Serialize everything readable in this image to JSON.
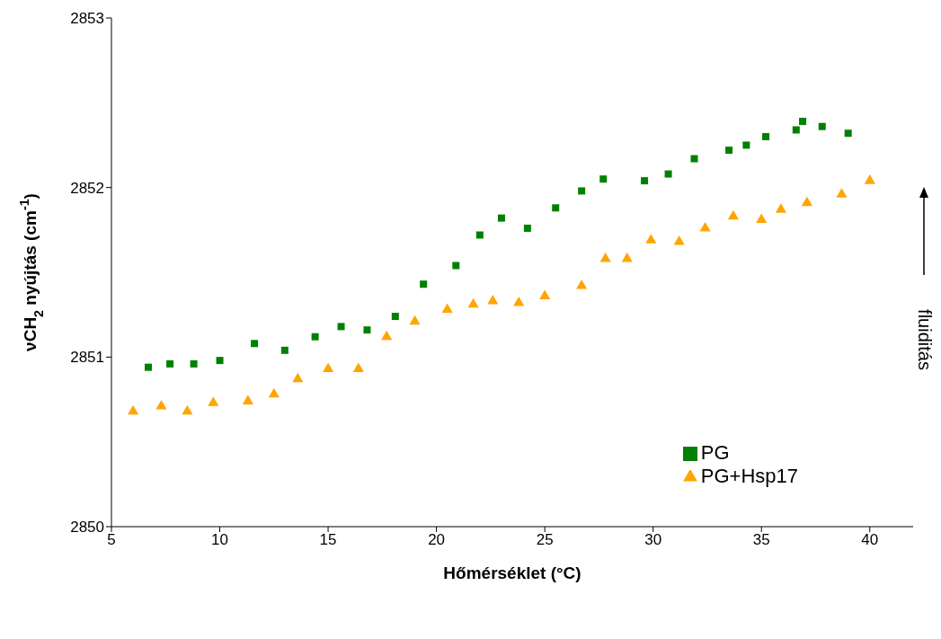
{
  "chart_data": {
    "type": "scatter",
    "xlabel": "Hőmérséklet (°C)",
    "ylabel": "νCH$_{2}$ nyújtás (cm$^{-1}$)",
    "xlim": [
      5,
      42
    ],
    "xticks": [
      5,
      10,
      15,
      20,
      25,
      30,
      35,
      40
    ],
    "ylim": [
      2850,
      2853
    ],
    "yticks": [
      2850,
      2851,
      2852,
      2853
    ],
    "legend": "bottom right",
    "grid": false,
    "annotations": [
      "fluiditás"
    ],
    "series": [
      {
        "name": "PG",
        "color": "#008000",
        "marker": "square",
        "x": [
          6.7,
          7.7,
          8.8,
          10.0,
          11.6,
          13.0,
          14.4,
          15.6,
          16.8,
          18.1,
          19.4,
          20.9,
          22.0,
          23.0,
          24.2,
          25.5,
          26.7,
          27.7,
          29.6,
          30.7,
          31.9,
          33.5,
          34.3,
          35.2,
          36.6,
          36.9,
          37.8,
          39.0
        ],
        "values": [
          2850.94,
          2850.96,
          2850.96,
          2850.98,
          2851.08,
          2851.04,
          2851.12,
          2851.18,
          2851.16,
          2851.24,
          2851.43,
          2851.54,
          2851.72,
          2851.82,
          2851.76,
          2851.88,
          2851.98,
          2852.05,
          2852.04,
          2852.08,
          2852.17,
          2852.22,
          2852.25,
          2852.3,
          2852.34,
          2852.39,
          2852.36,
          2852.32
        ]
      },
      {
        "name": "PG+Hsp17",
        "color": "#ffa500",
        "marker": "triangle",
        "x": [
          6.0,
          7.3,
          8.5,
          9.7,
          11.3,
          12.5,
          13.6,
          15.0,
          16.4,
          17.7,
          19.0,
          20.5,
          21.7,
          22.6,
          23.8,
          25.0,
          26.7,
          27.8,
          28.8,
          29.9,
          31.2,
          32.4,
          33.7,
          35.0,
          35.9,
          37.1,
          38.7,
          40.0
        ],
        "values": [
          2850.68,
          2850.71,
          2850.68,
          2850.73,
          2850.74,
          2850.78,
          2850.87,
          2850.93,
          2850.93,
          2851.12,
          2851.21,
          2851.28,
          2851.31,
          2851.33,
          2851.32,
          2851.36,
          2851.42,
          2851.58,
          2851.58,
          2851.69,
          2851.68,
          2851.76,
          2851.83,
          2851.81,
          2851.87,
          2851.91,
          2851.96,
          2852.04
        ]
      }
    ]
  }
}
